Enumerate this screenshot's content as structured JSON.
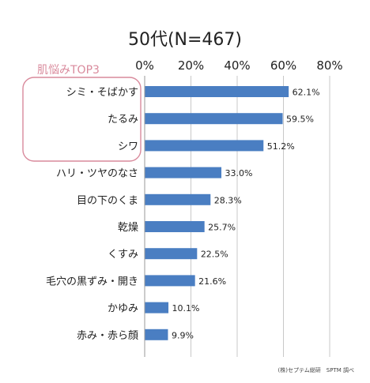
{
  "chart_data": {
    "type": "bar",
    "orientation": "horizontal",
    "title": "50代(N=467)",
    "highlight_label": "肌悩みTOP3",
    "categories": [
      "シミ・そばかす",
      "たるみ",
      "シワ",
      "ハリ・ツヤのなさ",
      "目の下のくま",
      "乾燥",
      "くすみ",
      "毛穴の黒ずみ・開き",
      "かゆみ",
      "赤み・赤ら顔"
    ],
    "values": [
      62.1,
      59.5,
      51.2,
      33.0,
      28.3,
      25.7,
      22.5,
      21.6,
      10.1,
      9.9
    ],
    "value_labels": [
      "62.1%",
      "59.5%",
      "51.2%",
      "33.0%",
      "28.3%",
      "25.7%",
      "22.5%",
      "21.6%",
      "10.1%",
      "9.9%"
    ],
    "x_ticks": [
      "0%",
      "20%",
      "40%",
      "60%",
      "80%"
    ],
    "xlim": [
      0,
      80
    ],
    "grid": true,
    "source": "(株)セプテム総研　SPTM 調べ",
    "colors": {
      "bar": "#4a7ec2",
      "highlight": "#d98a9c",
      "text": "#222222",
      "grid": "#c8c8c8"
    }
  }
}
